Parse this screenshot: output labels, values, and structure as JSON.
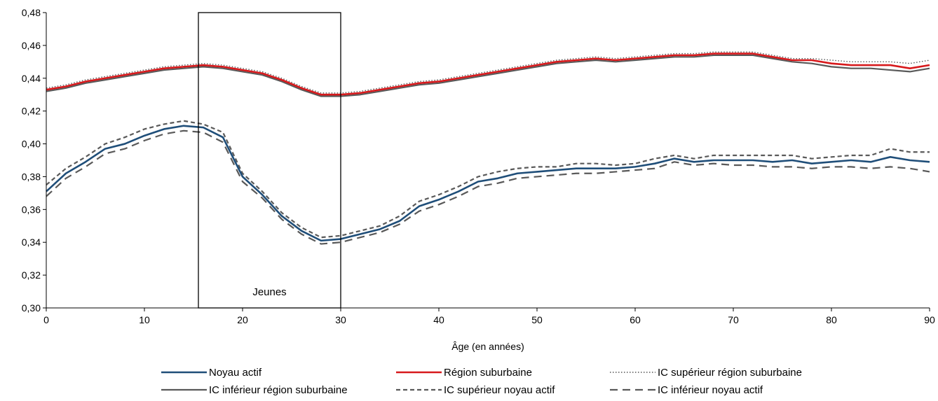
{
  "chart_data": {
    "type": "line",
    "xlabel": "Âge (en années)",
    "ylabel": "",
    "xlim": [
      0,
      90
    ],
    "ylim": [
      0.3,
      0.48
    ],
    "x_ticks": [
      0,
      10,
      20,
      30,
      40,
      50,
      60,
      70,
      80,
      90
    ],
    "x_tick_labels": [
      "0",
      "10",
      "20",
      "30",
      "40",
      "50",
      "60",
      "70",
      "80",
      "90"
    ],
    "y_ticks": [
      0.3,
      0.32,
      0.34,
      0.36,
      0.38,
      0.4,
      0.42,
      0.44,
      0.46,
      0.48
    ],
    "y_tick_labels": [
      "0,30",
      "0,32",
      "0,34",
      "0,36",
      "0,38",
      "0,40",
      "0,42",
      "0,44",
      "0,46",
      "0,48"
    ],
    "grid": false,
    "legend_position": "bottom",
    "annotation": {
      "label": "Jeunes",
      "x_start": 15.5,
      "x_end": 30
    },
    "x": [
      0,
      2,
      4,
      6,
      8,
      10,
      12,
      14,
      16,
      18,
      20,
      22,
      24,
      26,
      28,
      30,
      32,
      34,
      36,
      38,
      40,
      42,
      44,
      46,
      48,
      50,
      52,
      54,
      56,
      58,
      60,
      62,
      64,
      66,
      68,
      70,
      72,
      74,
      76,
      78,
      80,
      82,
      84,
      86,
      88,
      90
    ],
    "series": [
      {
        "name": "Noyau actif",
        "color": "#1f4e79",
        "dash": "solid",
        "width": 2.6,
        "values": [
          0.371,
          0.382,
          0.389,
          0.397,
          0.4,
          0.405,
          0.409,
          0.411,
          0.41,
          0.404,
          0.38,
          0.369,
          0.356,
          0.347,
          0.341,
          0.342,
          0.345,
          0.348,
          0.353,
          0.362,
          0.366,
          0.371,
          0.377,
          0.379,
          0.382,
          0.383,
          0.384,
          0.385,
          0.385,
          0.385,
          0.386,
          0.388,
          0.391,
          0.389,
          0.39,
          0.39,
          0.39,
          0.389,
          0.39,
          0.388,
          0.389,
          0.39,
          0.389,
          0.392,
          0.39,
          0.389
        ]
      },
      {
        "name": "Région suburbaine",
        "color": "#d7191c",
        "dash": "solid",
        "width": 2.6,
        "values": [
          0.433,
          0.435,
          0.438,
          0.44,
          0.442,
          0.444,
          0.446,
          0.447,
          0.448,
          0.447,
          0.445,
          0.443,
          0.439,
          0.434,
          0.43,
          0.43,
          0.431,
          0.433,
          0.435,
          0.437,
          0.438,
          0.44,
          0.442,
          0.444,
          0.446,
          0.448,
          0.45,
          0.451,
          0.452,
          0.451,
          0.452,
          0.453,
          0.454,
          0.454,
          0.455,
          0.455,
          0.455,
          0.453,
          0.451,
          0.451,
          0.449,
          0.448,
          0.448,
          0.448,
          0.446,
          0.448
        ]
      },
      {
        "name": "IC supérieur région suburbaine",
        "color": "#555555",
        "dash": "dotted",
        "width": 1.4,
        "values": [
          0.434,
          0.436,
          0.439,
          0.441,
          0.443,
          0.445,
          0.447,
          0.448,
          0.449,
          0.448,
          0.446,
          0.444,
          0.44,
          0.435,
          0.431,
          0.431,
          0.432,
          0.434,
          0.436,
          0.438,
          0.439,
          0.441,
          0.443,
          0.445,
          0.447,
          0.449,
          0.451,
          0.452,
          0.453,
          0.452,
          0.453,
          0.454,
          0.455,
          0.455,
          0.456,
          0.456,
          0.456,
          0.454,
          0.452,
          0.452,
          0.451,
          0.45,
          0.45,
          0.45,
          0.449,
          0.451
        ]
      },
      {
        "name": "IC inférieur région suburbaine",
        "color": "#595959",
        "dash": "solid",
        "width": 2.2,
        "values": [
          0.432,
          0.434,
          0.437,
          0.439,
          0.441,
          0.443,
          0.445,
          0.446,
          0.447,
          0.446,
          0.444,
          0.442,
          0.438,
          0.433,
          0.429,
          0.429,
          0.43,
          0.432,
          0.434,
          0.436,
          0.437,
          0.439,
          0.441,
          0.443,
          0.445,
          0.447,
          0.449,
          0.45,
          0.451,
          0.45,
          0.451,
          0.452,
          0.453,
          0.453,
          0.454,
          0.454,
          0.454,
          0.452,
          0.45,
          0.449,
          0.447,
          0.446,
          0.446,
          0.445,
          0.444,
          0.446
        ]
      },
      {
        "name": "IC supérieur noyau actif",
        "color": "#595959",
        "dash": "short-dash",
        "width": 2.2,
        "values": [
          0.375,
          0.385,
          0.392,
          0.4,
          0.404,
          0.409,
          0.412,
          0.414,
          0.412,
          0.407,
          0.382,
          0.371,
          0.358,
          0.349,
          0.343,
          0.344,
          0.347,
          0.35,
          0.356,
          0.365,
          0.369,
          0.374,
          0.38,
          0.383,
          0.385,
          0.386,
          0.386,
          0.388,
          0.388,
          0.387,
          0.388,
          0.391,
          0.393,
          0.391,
          0.393,
          0.393,
          0.393,
          0.393,
          0.393,
          0.391,
          0.392,
          0.393,
          0.393,
          0.397,
          0.395,
          0.395
        ]
      },
      {
        "name": "IC inférieur noyau actif",
        "color": "#595959",
        "dash": "long-dash",
        "width": 2.2,
        "values": [
          0.368,
          0.379,
          0.386,
          0.394,
          0.397,
          0.402,
          0.406,
          0.408,
          0.407,
          0.401,
          0.377,
          0.367,
          0.354,
          0.345,
          0.339,
          0.34,
          0.343,
          0.346,
          0.351,
          0.359,
          0.363,
          0.368,
          0.374,
          0.376,
          0.379,
          0.38,
          0.381,
          0.382,
          0.382,
          0.383,
          0.384,
          0.385,
          0.389,
          0.387,
          0.388,
          0.387,
          0.387,
          0.386,
          0.386,
          0.385,
          0.386,
          0.386,
          0.385,
          0.386,
          0.385,
          0.383
        ]
      }
    ]
  }
}
